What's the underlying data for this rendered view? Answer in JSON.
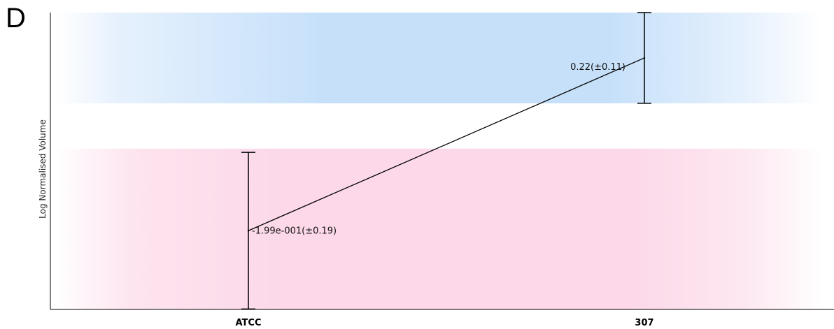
{
  "panel_label": "D",
  "colors": {
    "upper_band": "#c6e0fa",
    "lower_band": "#fcd8e8",
    "line": "#000000"
  },
  "chart_data": {
    "type": "line",
    "title": "",
    "xlabel": "",
    "ylabel": "Log Normalised Volume",
    "categories": [
      "ATCC",
      "307"
    ],
    "series": [
      {
        "values": [
          -0.199,
          0.22
        ],
        "errors": [
          0.19,
          0.11
        ],
        "labels": [
          "-1.99e-001(±0.19)",
          "0.22(±0.11)"
        ]
      }
    ],
    "ylim": [
      -0.39,
      0.33
    ],
    "bands": [
      {
        "from": 0.11,
        "to": 0.33,
        "color": "blue"
      },
      {
        "from": -0.39,
        "to": 0.0,
        "color": "pink"
      }
    ],
    "grid": false,
    "legend": "none"
  }
}
